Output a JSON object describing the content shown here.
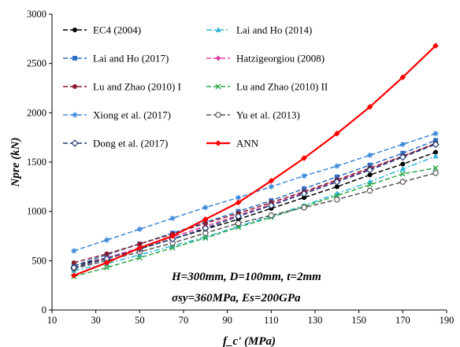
{
  "chart_data": {
    "type": "line",
    "xlabel": "f_c' (MPa)",
    "ylabel": "Npre (kN)",
    "xlim": [
      10,
      190
    ],
    "ylim": [
      0,
      3000
    ],
    "xticks": [
      "10",
      "30",
      "50",
      "70",
      "90",
      "110",
      "130",
      "150",
      "170",
      "190"
    ],
    "yticks": [
      "0",
      "500",
      "1000",
      "1500",
      "2000",
      "2500",
      "3000"
    ],
    "grid": false,
    "legend_position": "top-left",
    "annotation": [
      "H=300mm, D=100mm, t=2mm",
      "σsy=360MPa, Es=200GPa"
    ],
    "x": [
      20,
      35,
      50,
      65,
      80,
      95,
      110,
      125,
      140,
      155,
      170,
      185
    ],
    "series": [
      {
        "name": "EC4 (2004)",
        "color": "#000000",
        "dash": "6,3",
        "marker": "dot",
        "values": [
          450,
          530,
          620,
          720,
          820,
          920,
          1030,
          1140,
          1250,
          1370,
          1480,
          1600
        ]
      },
      {
        "name": "Lai and Ho (2014)",
        "color": "#29b6d9",
        "dash": "7,3,2,3",
        "marker": "triangle",
        "values": [
          400,
          470,
          560,
          650,
          740,
          850,
          950,
          1060,
          1180,
          1300,
          1430,
          1560
        ]
      },
      {
        "name": "Lai and Ho (2017)",
        "color": "#2e6fbf",
        "dash": "6,3",
        "marker": "square",
        "values": [
          450,
          560,
          670,
          780,
          890,
          1000,
          1110,
          1230,
          1350,
          1470,
          1590,
          1720
        ]
      },
      {
        "name": "Hatzigeorgiou (2008)",
        "color": "#e040a0",
        "dash": "6,3",
        "marker": "diamond",
        "values": [
          430,
          530,
          630,
          740,
          850,
          960,
          1070,
          1190,
          1310,
          1430,
          1560,
          1690
        ]
      },
      {
        "name": "Lu and Zhao (2010) I",
        "color": "#8b1a2b",
        "dash": "6,3",
        "marker": "dot",
        "values": [
          480,
          570,
          670,
          770,
          880,
          980,
          1090,
          1200,
          1320,
          1440,
          1560,
          1690
        ]
      },
      {
        "name": "Lu and Zhao (2010) II",
        "color": "#2ea84a",
        "dash": "6,3",
        "marker": "cross",
        "values": [
          340,
          430,
          530,
          630,
          730,
          840,
          940,
          1050,
          1160,
          1270,
          1380,
          1440
        ]
      },
      {
        "name": "Xiong et al. (2017)",
        "color": "#3a86d9",
        "dash": "6,3",
        "marker": "star",
        "values": [
          600,
          710,
          820,
          930,
          1040,
          1140,
          1250,
          1360,
          1460,
          1570,
          1680,
          1790
        ]
      },
      {
        "name": "Yu et al. (2013)",
        "color": "#555555",
        "dash": "6,3",
        "marker": "circle",
        "values": [
          420,
          500,
          590,
          680,
          780,
          880,
          960,
          1040,
          1120,
          1210,
          1300,
          1390
        ]
      },
      {
        "name": "Dong et al. (2017)",
        "color": "#1f3b73",
        "dash": "6,3",
        "marker": "diamond-open",
        "values": [
          430,
          520,
          620,
          720,
          830,
          950,
          1060,
          1180,
          1300,
          1420,
          1550,
          1680
        ]
      },
      {
        "name": "ANN",
        "color": "#ff0000",
        "dash": "",
        "marker": "diamond-filled",
        "values": [
          350,
          480,
          630,
          750,
          920,
          1090,
          1310,
          1540,
          1790,
          2060,
          2360,
          2680
        ]
      }
    ]
  }
}
